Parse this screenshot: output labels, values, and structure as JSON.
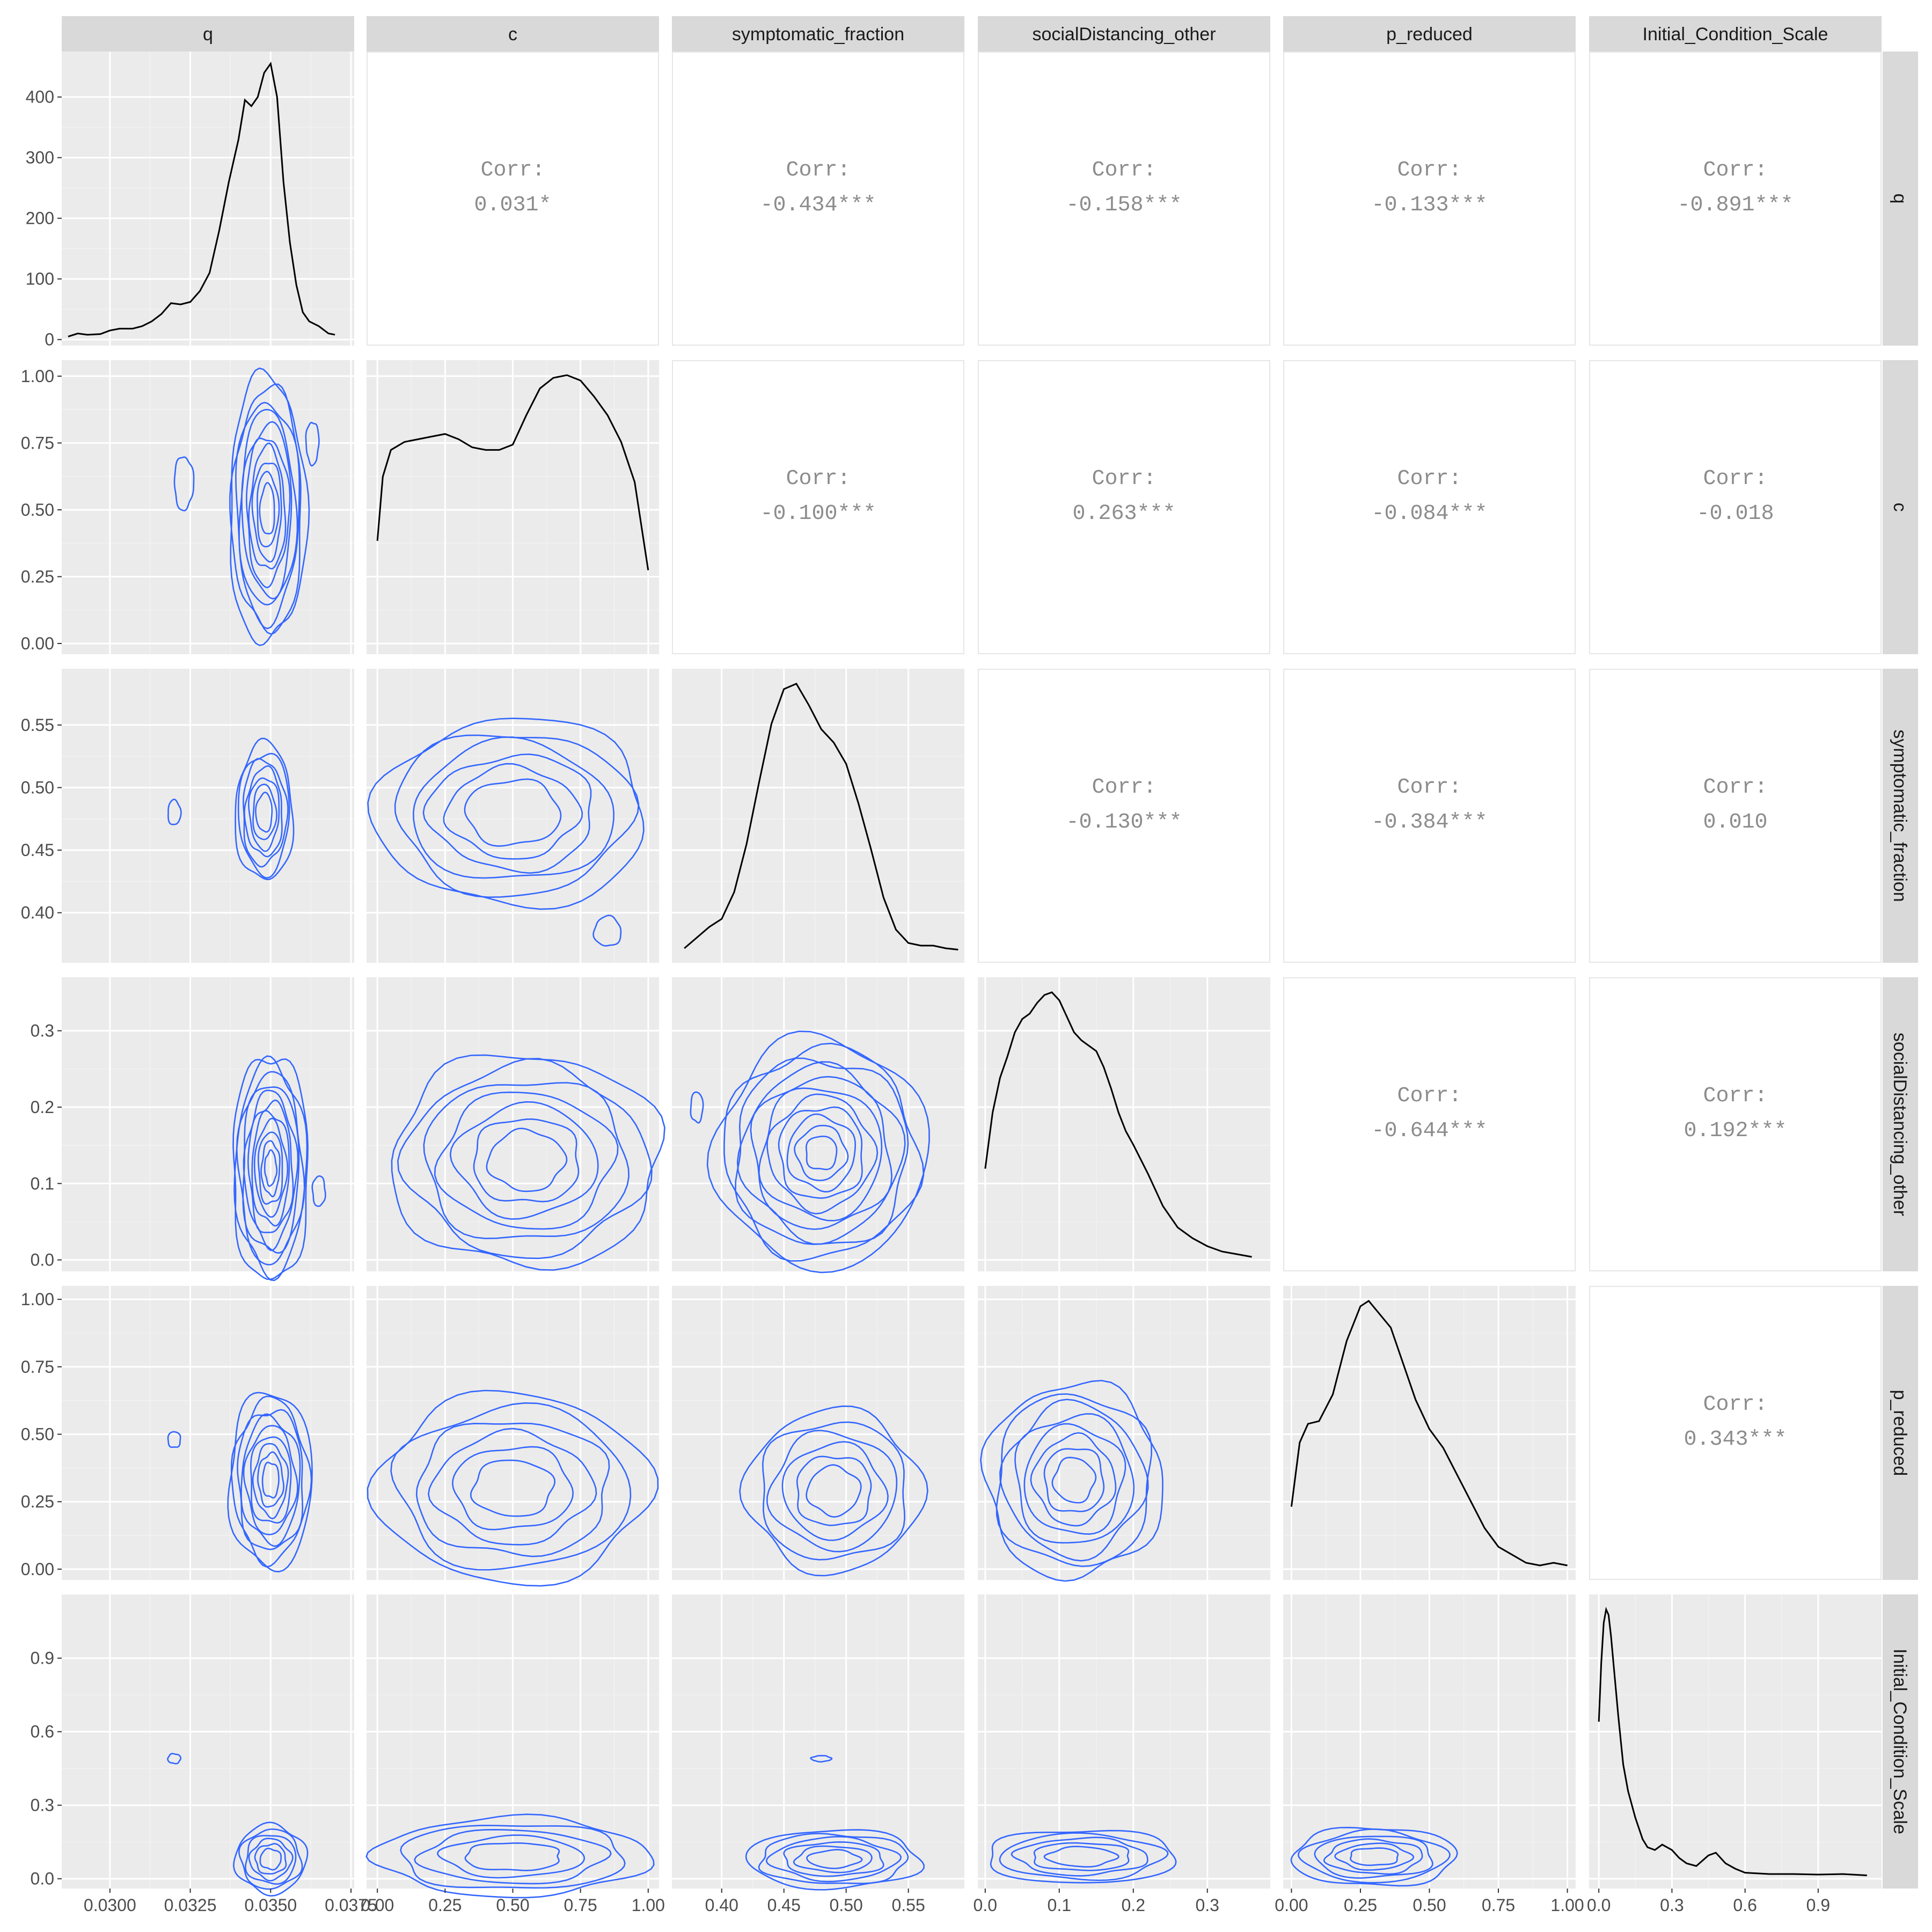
{
  "chart_data": {
    "type": "scatter",
    "title": "",
    "variables": [
      "q",
      "c",
      "symptomatic_fraction",
      "socialDistancing_other",
      "p_reduced",
      "Initial_Condition_Scale"
    ],
    "corr_label": "Corr:",
    "correlations": [
      {
        "row": "q",
        "col": "c",
        "value": "0.031*"
      },
      {
        "row": "q",
        "col": "symptomatic_fraction",
        "value": "-0.434***"
      },
      {
        "row": "q",
        "col": "socialDistancing_other",
        "value": "-0.158***"
      },
      {
        "row": "q",
        "col": "p_reduced",
        "value": "-0.133***"
      },
      {
        "row": "q",
        "col": "Initial_Condition_Scale",
        "value": "-0.891***"
      },
      {
        "row": "c",
        "col": "symptomatic_fraction",
        "value": "-0.100***"
      },
      {
        "row": "c",
        "col": "socialDistancing_other",
        "value": "0.263***"
      },
      {
        "row": "c",
        "col": "p_reduced",
        "value": "-0.084***"
      },
      {
        "row": "c",
        "col": "Initial_Condition_Scale",
        "value": "-0.018"
      },
      {
        "row": "symptomatic_fraction",
        "col": "socialDistancing_other",
        "value": "-0.130***"
      },
      {
        "row": "symptomatic_fraction",
        "col": "p_reduced",
        "value": "-0.384***"
      },
      {
        "row": "symptomatic_fraction",
        "col": "Initial_Condition_Scale",
        "value": "0.010"
      },
      {
        "row": "socialDistancing_other",
        "col": "p_reduced",
        "value": "-0.644***"
      },
      {
        "row": "socialDistancing_other",
        "col": "Initial_Condition_Scale",
        "value": "0.192***"
      },
      {
        "row": "p_reduced",
        "col": "Initial_Condition_Scale",
        "value": "0.343***"
      }
    ],
    "x_axes": [
      {
        "var": "q",
        "lim": [
          0.0285,
          0.0376
        ],
        "ticks": [
          "0.0300",
          "0.0325",
          "0.0350",
          "0.0375"
        ],
        "values": [
          0.03,
          0.0325,
          0.035,
          0.0375
        ]
      },
      {
        "var": "c",
        "lim": [
          -0.04,
          1.04
        ],
        "ticks": [
          "0.00",
          "0.25",
          "0.50",
          "0.75",
          "1.00"
        ],
        "values": [
          0,
          0.25,
          0.5,
          0.75,
          1
        ]
      },
      {
        "var": "symptomatic_fraction",
        "lim": [
          0.36,
          0.595
        ],
        "ticks": [
          "0.40",
          "0.45",
          "0.50",
          "0.55"
        ],
        "values": [
          0.4,
          0.45,
          0.5,
          0.55
        ]
      },
      {
        "var": "socialDistancing_other",
        "lim": [
          -0.01,
          0.385
        ],
        "ticks": [
          "0.0",
          "0.1",
          "0.2",
          "0.3"
        ],
        "values": [
          0,
          0.1,
          0.2,
          0.3
        ]
      },
      {
        "var": "p_reduced",
        "lim": [
          -0.03,
          1.03
        ],
        "ticks": [
          "0.00",
          "0.25",
          "0.50",
          "0.75",
          "1.00"
        ],
        "values": [
          0,
          0.25,
          0.5,
          0.75,
          1
        ]
      },
      {
        "var": "Initial_Condition_Scale",
        "lim": [
          -0.04,
          1.16
        ],
        "ticks": [
          "0.0",
          "0.3",
          "0.6",
          "0.9"
        ],
        "values": [
          0,
          0.3,
          0.6,
          0.9
        ]
      }
    ],
    "y_axes": [
      {
        "var": "q",
        "lim": [
          -10,
          475
        ],
        "ticks": [
          "0",
          "100",
          "200",
          "300",
          "400"
        ],
        "values": [
          0,
          100,
          200,
          300,
          400
        ]
      },
      {
        "var": "c",
        "lim": [
          -0.04,
          1.06
        ],
        "ticks": [
          "0.00",
          "0.25",
          "0.50",
          "0.75",
          "1.00"
        ],
        "values": [
          0,
          0.25,
          0.5,
          0.75,
          1
        ]
      },
      {
        "var": "symptomatic_fraction",
        "lim": [
          0.36,
          0.595
        ],
        "ticks": [
          "0.40",
          "0.45",
          "0.50",
          "0.55"
        ],
        "values": [
          0.4,
          0.45,
          0.5,
          0.55
        ]
      },
      {
        "var": "socialDistancing_other",
        "lim": [
          -0.015,
          0.37
        ],
        "ticks": [
          "0.0",
          "0.1",
          "0.2",
          "0.3"
        ],
        "values": [
          0,
          0.1,
          0.2,
          0.3
        ]
      },
      {
        "var": "p_reduced",
        "lim": [
          -0.04,
          1.05
        ],
        "ticks": [
          "0.00",
          "0.25",
          "0.50",
          "0.75",
          "1.00"
        ],
        "values": [
          0,
          0.25,
          0.5,
          0.75,
          1
        ]
      },
      {
        "var": "Initial_Condition_Scale",
        "lim": [
          -0.04,
          1.16
        ],
        "ticks": [
          "0.0",
          "0.3",
          "0.6",
          "0.9"
        ],
        "values": [
          0,
          0.3,
          0.6,
          0.9
        ]
      }
    ],
    "diagonal_densities": [
      {
        "var": "q",
        "x": [
          0.0287,
          0.029,
          0.0293,
          0.0297,
          0.03,
          0.0303,
          0.0307,
          0.031,
          0.0313,
          0.0316,
          0.0319,
          0.0322,
          0.0325,
          0.0328,
          0.0331,
          0.0334,
          0.0337,
          0.034,
          0.0342,
          0.0344,
          0.0346,
          0.0348,
          0.035,
          0.0352,
          0.0354,
          0.0356,
          0.0358,
          0.036,
          0.0362,
          0.0365,
          0.0368,
          0.037
        ],
        "y": [
          5,
          10,
          8,
          9,
          15,
          18,
          18,
          22,
          30,
          42,
          60,
          58,
          62,
          80,
          110,
          180,
          260,
          330,
          395,
          385,
          400,
          440,
          455,
          400,
          260,
          160,
          90,
          45,
          30,
          22,
          10,
          8
        ]
      },
      {
        "var": "c",
        "x": [
          0.0,
          0.02,
          0.05,
          0.1,
          0.15,
          0.2,
          0.25,
          0.3,
          0.35,
          0.4,
          0.45,
          0.5,
          0.55,
          0.6,
          0.65,
          0.7,
          0.75,
          0.8,
          0.85,
          0.9,
          0.95,
          1.0
        ],
        "y": [
          0.38,
          0.62,
          0.72,
          0.75,
          0.76,
          0.77,
          0.78,
          0.76,
          0.73,
          0.72,
          0.72,
          0.74,
          0.85,
          0.95,
          0.99,
          1.0,
          0.98,
          0.92,
          0.85,
          0.75,
          0.6,
          0.27
        ]
      },
      {
        "var": "symptomatic_fraction",
        "x": [
          0.37,
          0.38,
          0.39,
          0.4,
          0.41,
          0.42,
          0.43,
          0.44,
          0.45,
          0.46,
          0.47,
          0.48,
          0.49,
          0.5,
          0.51,
          0.52,
          0.53,
          0.54,
          0.55,
          0.56,
          0.57,
          0.58,
          0.59
        ],
        "y": [
          0.01,
          0.05,
          0.09,
          0.12,
          0.22,
          0.4,
          0.63,
          0.85,
          0.98,
          1.0,
          0.92,
          0.83,
          0.78,
          0.7,
          0.55,
          0.38,
          0.2,
          0.08,
          0.03,
          0.02,
          0.02,
          0.01,
          0.005
        ]
      },
      {
        "var": "socialDistancing_other",
        "x": [
          0.0,
          0.01,
          0.02,
          0.03,
          0.04,
          0.05,
          0.06,
          0.07,
          0.08,
          0.09,
          0.1,
          0.11,
          0.12,
          0.13,
          0.14,
          0.15,
          0.16,
          0.17,
          0.18,
          0.19,
          0.2,
          0.22,
          0.24,
          0.26,
          0.28,
          0.3,
          0.32,
          0.34,
          0.36
        ],
        "y": [
          0.34,
          0.55,
          0.68,
          0.76,
          0.85,
          0.9,
          0.92,
          0.96,
          0.99,
          1.0,
          0.97,
          0.91,
          0.85,
          0.82,
          0.8,
          0.78,
          0.72,
          0.64,
          0.55,
          0.48,
          0.43,
          0.32,
          0.2,
          0.12,
          0.08,
          0.05,
          0.03,
          0.02,
          0.01
        ]
      },
      {
        "var": "p_reduced",
        "x": [
          0.0,
          0.03,
          0.06,
          0.1,
          0.15,
          0.2,
          0.25,
          0.28,
          0.32,
          0.36,
          0.4,
          0.45,
          0.5,
          0.55,
          0.6,
          0.65,
          0.7,
          0.75,
          0.8,
          0.85,
          0.9,
          0.95,
          1.0
        ],
        "y": [
          0.23,
          0.47,
          0.54,
          0.55,
          0.65,
          0.85,
          0.98,
          1.0,
          0.95,
          0.9,
          0.78,
          0.63,
          0.52,
          0.45,
          0.35,
          0.25,
          0.15,
          0.08,
          0.05,
          0.02,
          0.01,
          0.02,
          0.01
        ]
      },
      {
        "var": "Initial_Condition_Scale",
        "x": [
          0.0,
          0.01,
          0.02,
          0.03,
          0.04,
          0.05,
          0.06,
          0.08,
          0.1,
          0.12,
          0.15,
          0.18,
          0.2,
          0.23,
          0.26,
          0.3,
          0.33,
          0.36,
          0.4,
          0.45,
          0.48,
          0.52,
          0.56,
          0.6,
          0.7,
          0.8,
          0.9,
          1.0,
          1.1
        ],
        "y": [
          0.58,
          0.8,
          0.95,
          1.0,
          0.98,
          0.9,
          0.8,
          0.6,
          0.42,
          0.32,
          0.22,
          0.14,
          0.11,
          0.1,
          0.12,
          0.1,
          0.07,
          0.05,
          0.04,
          0.08,
          0.09,
          0.05,
          0.03,
          0.015,
          0.01,
          0.01,
          0.008,
          0.01,
          0.005
        ]
      }
    ],
    "contour_color": "#3366FF",
    "grid": true,
    "legend": "none"
  }
}
